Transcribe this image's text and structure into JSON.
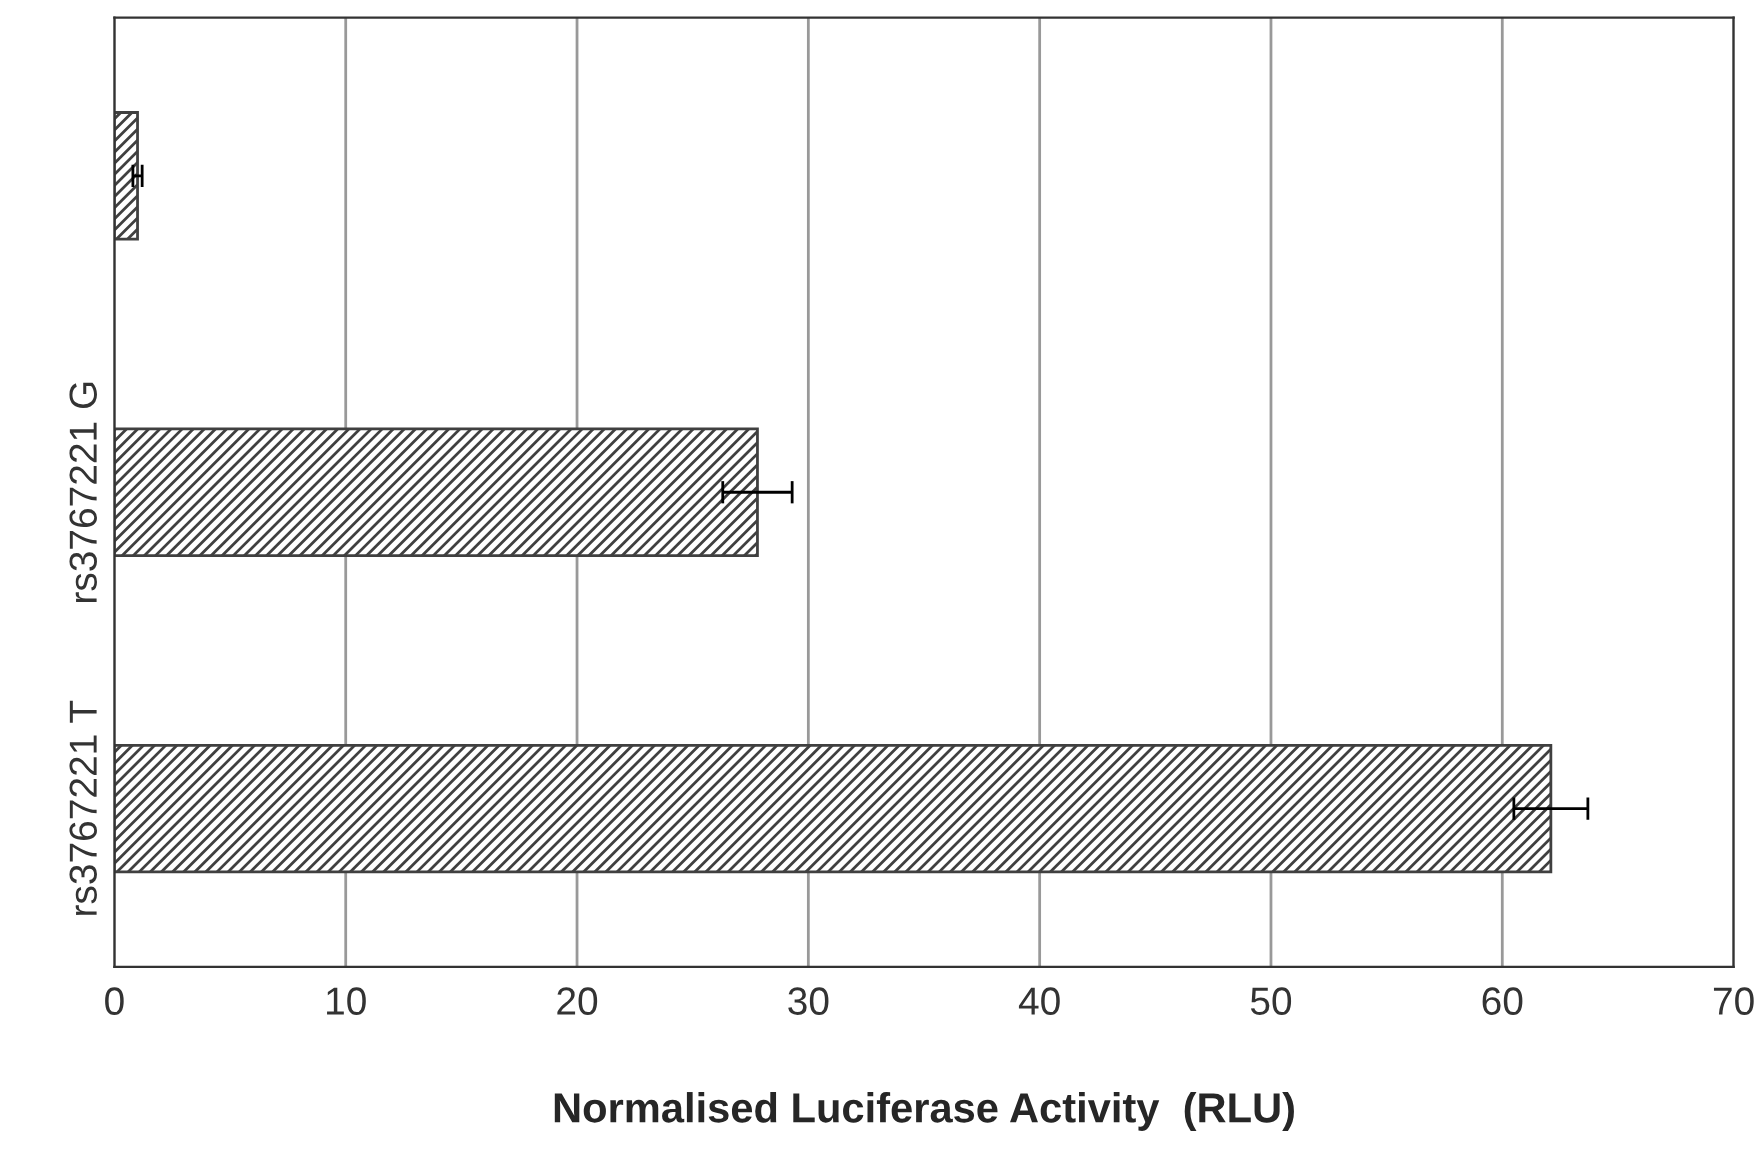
{
  "chart_data": {
    "type": "bar",
    "orientation": "horizontal",
    "xlabel": "Normalised Luciferase Activity  (RLU)",
    "categories": [
      null,
      "rs3767221 G",
      "rs3767221 T"
    ],
    "series": [
      {
        "color": "#404040",
        "values": [
          1.0,
          27.8,
          62.1
        ],
        "errors": [
          0.2,
          1.5,
          1.6
        ]
      }
    ],
    "xlim": [
      0,
      70
    ],
    "xticks": [
      0,
      10,
      20,
      30,
      40,
      50,
      60,
      70
    ],
    "grid": "x"
  }
}
